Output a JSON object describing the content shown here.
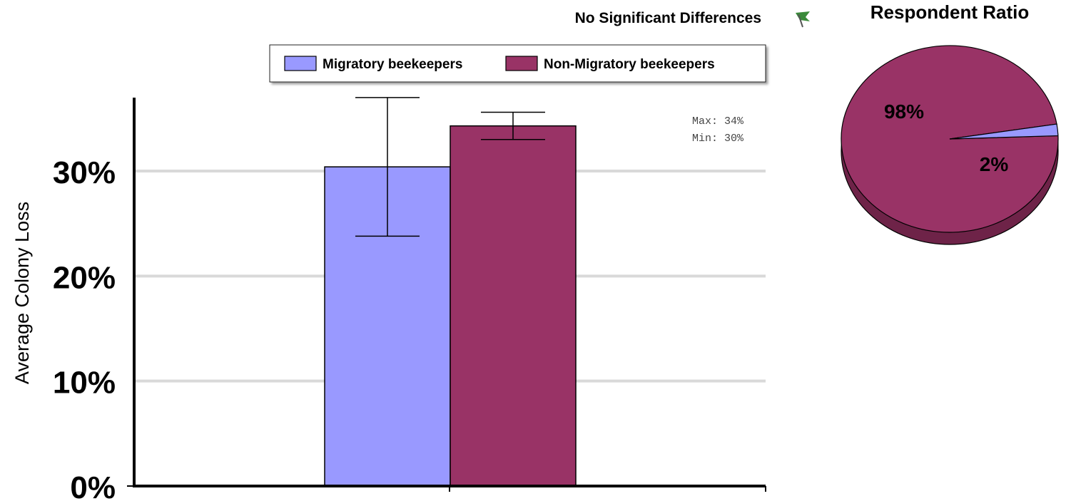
{
  "header": {
    "note": "No Significant Differences",
    "icon": "flag-icon"
  },
  "colors": {
    "migratory": "#9999ff",
    "non_migratory": "#993366",
    "grid": "#d9d9d9",
    "axis": "#000000"
  },
  "stats": {
    "max_label": "Max: 34%",
    "min_label": "Min: 30%"
  },
  "chart_data": [
    {
      "type": "bar",
      "categories": [
        ""
      ],
      "series": [
        {
          "name": "Migratory beekeepers",
          "values": [
            30.4
          ],
          "error_low": [
            23.8
          ],
          "error_high": [
            37.0
          ]
        },
        {
          "name": "Non-Migratory beekeepers",
          "values": [
            34.3
          ],
          "error_low": [
            33.0
          ],
          "error_high": [
            35.6
          ]
        }
      ],
      "ylabel": "Average Colony Loss",
      "ylim": [
        0,
        37
      ],
      "yticks": [
        0,
        10,
        20,
        30
      ],
      "ytick_labels": [
        "0%",
        "10%",
        "20%",
        "30%"
      ],
      "grid": true,
      "legend": "top"
    },
    {
      "type": "pie",
      "title": "Respondent Ratio",
      "labels": [
        "Non-Migratory beekeepers",
        "Migratory beekeepers"
      ],
      "values": [
        98,
        2
      ],
      "value_labels": [
        "98%",
        "2%"
      ],
      "style": "3d"
    }
  ]
}
